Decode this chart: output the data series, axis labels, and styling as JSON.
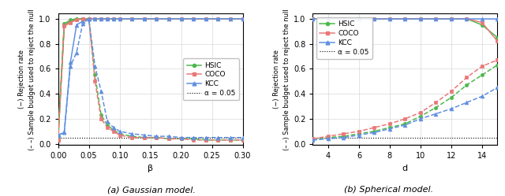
{
  "panel_a": {
    "title": "(a) Gaussian model.",
    "xlabel": "β",
    "x": [
      0.0,
      0.01,
      0.02,
      0.03,
      0.04,
      0.05,
      0.06,
      0.07,
      0.08,
      0.09,
      0.1,
      0.12,
      0.14,
      0.16,
      0.18,
      0.2,
      0.22,
      0.24,
      0.26,
      0.28,
      0.3
    ],
    "hsic_solid": [
      0.06,
      0.96,
      0.99,
      1.0,
      1.0,
      1.0,
      1.0,
      1.0,
      1.0,
      1.0,
      1.0,
      1.0,
      1.0,
      1.0,
      1.0,
      1.0,
      1.0,
      1.0,
      1.0,
      1.0,
      1.0
    ],
    "coco_solid": [
      0.03,
      0.95,
      0.98,
      0.99,
      1.0,
      1.0,
      1.0,
      1.0,
      1.0,
      1.0,
      1.0,
      1.0,
      1.0,
      1.0,
      1.0,
      1.0,
      1.0,
      1.0,
      1.0,
      1.0,
      1.0
    ],
    "kcc_solid": [
      0.07,
      0.09,
      0.65,
      0.95,
      0.98,
      1.0,
      1.0,
      1.0,
      1.0,
      1.0,
      1.0,
      1.0,
      1.0,
      1.0,
      1.0,
      1.0,
      1.0,
      1.0,
      1.0,
      1.0,
      1.0
    ],
    "hsic_dashed": [
      0.06,
      0.95,
      0.98,
      1.0,
      1.0,
      1.0,
      0.55,
      0.23,
      0.15,
      0.11,
      0.08,
      0.06,
      0.05,
      0.05,
      0.04,
      0.04,
      0.04,
      0.03,
      0.03,
      0.03,
      0.03
    ],
    "coco_dashed": [
      0.03,
      0.94,
      0.97,
      0.99,
      1.0,
      1.0,
      0.5,
      0.2,
      0.13,
      0.1,
      0.07,
      0.05,
      0.05,
      0.05,
      0.04,
      0.04,
      0.03,
      0.03,
      0.03,
      0.03,
      0.03
    ],
    "kcc_dashed": [
      0.07,
      0.09,
      0.62,
      0.73,
      0.96,
      1.0,
      0.62,
      0.42,
      0.18,
      0.13,
      0.1,
      0.08,
      0.07,
      0.06,
      0.06,
      0.05,
      0.05,
      0.05,
      0.05,
      0.05,
      0.05
    ],
    "alpha": 0.05,
    "xlim": [
      0.0,
      0.3
    ],
    "ylim": [
      -0.01,
      1.04
    ],
    "xticks": [
      0.0,
      0.05,
      0.1,
      0.15,
      0.2,
      0.25,
      0.3
    ],
    "yticks": [
      0.0,
      0.2,
      0.4,
      0.6,
      0.8,
      1.0
    ],
    "legend_loc": "center right"
  },
  "panel_b": {
    "title": "(b) Spherical model.",
    "xlabel": "d",
    "x": [
      3,
      4,
      5,
      6,
      7,
      8,
      9,
      10,
      11,
      12,
      13,
      14,
      15
    ],
    "hsic_solid": [
      1.0,
      1.0,
      1.0,
      1.0,
      1.0,
      1.0,
      1.0,
      1.0,
      1.0,
      1.0,
      1.0,
      0.95,
      0.85
    ],
    "coco_solid": [
      1.0,
      1.0,
      1.0,
      1.0,
      1.0,
      1.0,
      1.0,
      1.0,
      1.0,
      1.0,
      1.0,
      0.97,
      0.82
    ],
    "kcc_solid": [
      1.0,
      1.0,
      1.0,
      1.0,
      1.0,
      1.0,
      1.0,
      1.0,
      1.0,
      1.0,
      1.0,
      1.0,
      1.0
    ],
    "hsic_dashed": [
      0.03,
      0.05,
      0.06,
      0.08,
      0.1,
      0.13,
      0.16,
      0.22,
      0.29,
      0.37,
      0.47,
      0.55,
      0.63
    ],
    "coco_dashed": [
      0.04,
      0.06,
      0.08,
      0.1,
      0.13,
      0.16,
      0.2,
      0.25,
      0.33,
      0.42,
      0.53,
      0.62,
      0.67
    ],
    "kcc_dashed": [
      0.03,
      0.04,
      0.05,
      0.07,
      0.09,
      0.12,
      0.15,
      0.2,
      0.24,
      0.28,
      0.33,
      0.38,
      0.45
    ],
    "alpha": 0.05,
    "xlim": [
      3,
      15
    ],
    "ylim": [
      -0.01,
      1.04
    ],
    "xticks": [
      4,
      6,
      8,
      10,
      12,
      14
    ],
    "yticks": [
      0.0,
      0.2,
      0.4,
      0.6,
      0.8,
      1.0
    ],
    "legend_loc": "upper left"
  },
  "colors": {
    "hsic": "#4db84d",
    "coco": "#e87878",
    "kcc": "#6090e0"
  },
  "legend": {
    "hsic": "HSIC",
    "coco": "COCO",
    "kcc": "KCC",
    "alpha_label": "α = 0.05"
  },
  "ylabel": "(−) Rejection rate\n(– –) Sample budget used to reject the null"
}
